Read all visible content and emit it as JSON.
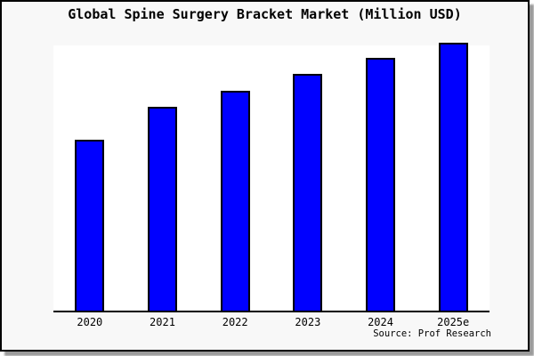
{
  "chart": {
    "title": "Global Spine Surgery Bracket Market (Million USD)",
    "source": "Source: Prof Research",
    "colors": {
      "bar_fill": "#0000ff",
      "bar_border": "#000000",
      "axis": "#000000",
      "text": "#000000",
      "plot_background": "#ffffff",
      "panel_background": "#f8f8f8",
      "panel_border": "#000000",
      "panel_shadow": "#9a9a9a"
    }
  },
  "chart_data": {
    "type": "bar",
    "title": "Global Spine Surgery Bracket Market (Million USD)",
    "categories": [
      "2020",
      "2021",
      "2022",
      "2023",
      "2024",
      "2025e"
    ],
    "values": [
      63.5,
      75.8,
      82.1,
      88.3,
      94.3,
      100
    ],
    "xlabel": "",
    "ylabel": "",
    "ylim": [
      0,
      100
    ],
    "y_axis_labels_visible": false,
    "grid": false,
    "legend": false,
    "annotations": [
      "Source: Prof Research"
    ]
  }
}
